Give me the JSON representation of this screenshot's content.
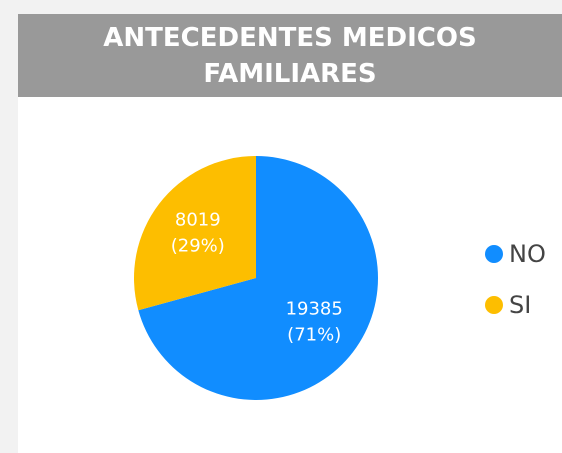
{
  "chart_data": {
    "type": "pie",
    "title": "ANTECEDENTES MEDICOS FAMILIARES",
    "categories": [
      "NO",
      "SI"
    ],
    "values": [
      19385,
      8019
    ],
    "value_labels": [
      [
        "19385",
        "(71%)"
      ],
      [
        "8019",
        "(29%)"
      ]
    ],
    "colors": [
      "#118DFF",
      "#FDBE00"
    ],
    "legend": "right"
  }
}
